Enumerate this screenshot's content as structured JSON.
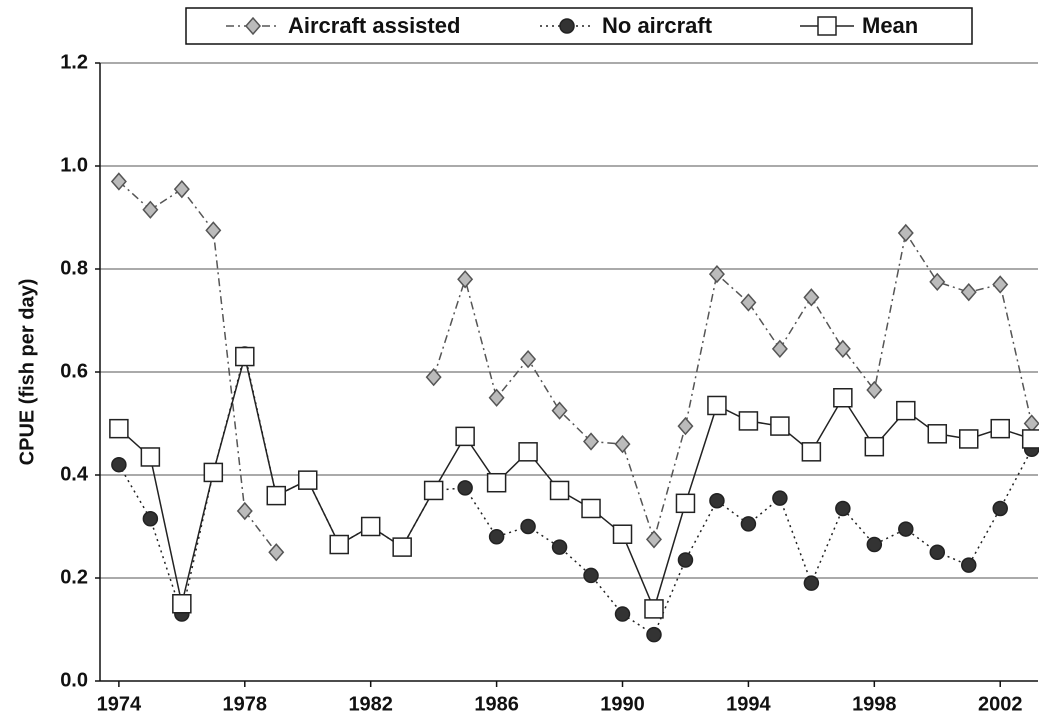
{
  "chart_data": {
    "type": "line",
    "y_label": "CPUE (fish per day)",
    "x": [
      1974,
      1975,
      1976,
      1977,
      1978,
      1979,
      1980,
      1981,
      1982,
      1983,
      1984,
      1985,
      1986,
      1987,
      1988,
      1989,
      1990,
      1991,
      1992,
      1993,
      1994,
      1995,
      1996,
      1997,
      1998,
      1999,
      2000,
      2001,
      2002,
      2003
    ],
    "series": [
      {
        "name": "Aircraft assisted",
        "color": "#555555",
        "marker": "diamond",
        "marker_fill": "#bbbbbb",
        "dash": "8 4 2 4",
        "values": [
          0.97,
          0.915,
          0.955,
          0.875,
          0.33,
          0.25,
          null,
          null,
          null,
          null,
          0.59,
          0.78,
          0.55,
          0.625,
          0.525,
          0.465,
          0.46,
          0.275,
          0.495,
          0.79,
          0.735,
          0.645,
          0.745,
          0.645,
          0.565,
          0.87,
          0.775,
          0.755,
          0.77,
          0.5
        ]
      },
      {
        "name": "No aircraft",
        "color": "#222222",
        "marker": "circle",
        "marker_fill": "#333333",
        "dash": "2 4",
        "values": [
          0.42,
          0.315,
          0.13,
          0.405,
          0.635,
          0.36,
          0.39,
          0.265,
          0.3,
          0.26,
          0.37,
          0.375,
          0.28,
          0.3,
          0.26,
          0.205,
          0.13,
          0.09,
          0.235,
          0.35,
          0.305,
          0.355,
          0.19,
          0.335,
          0.265,
          0.295,
          0.25,
          0.225,
          0.335,
          0.45
        ]
      },
      {
        "name": "Mean",
        "color": "#222222",
        "marker": "square",
        "marker_fill": "#ffffff",
        "dash": "none",
        "values": [
          0.49,
          0.435,
          0.15,
          0.405,
          0.63,
          0.36,
          0.39,
          0.265,
          0.3,
          0.26,
          0.37,
          0.475,
          0.385,
          0.445,
          0.37,
          0.335,
          0.285,
          0.14,
          0.345,
          0.535,
          0.505,
          0.495,
          0.445,
          0.55,
          0.455,
          0.525,
          0.48,
          0.47,
          0.49,
          0.47
        ]
      }
    ],
    "xlim": [
      1973.4,
      2003.2
    ],
    "xticks": [
      1974,
      1978,
      1982,
      1986,
      1990,
      1994,
      1998,
      2002
    ],
    "ylim": [
      0,
      1.2
    ],
    "yticks": [
      {
        "value": 0,
        "label": "0.0"
      },
      {
        "value": 0.2,
        "label": "0.2"
      },
      {
        "value": 0.4,
        "label": "0.4"
      },
      {
        "value": 0.6,
        "label": "0.6"
      },
      {
        "value": 0.8,
        "label": "0.8"
      },
      {
        "value": 1,
        "label": "1.0"
      },
      {
        "value": 1.2,
        "label": "1.2"
      }
    ],
    "grid": true
  }
}
